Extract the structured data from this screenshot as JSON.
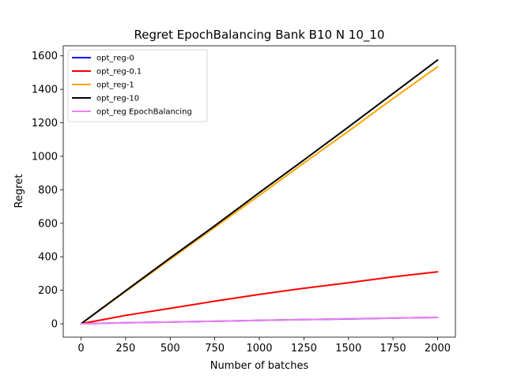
{
  "chart_data": {
    "type": "line",
    "title": "Regret EpochBalancing Bank B10 N 10_10",
    "xlabel": "Number of batches",
    "ylabel": "Regret",
    "xlim": [
      -100,
      2100
    ],
    "ylim": [
      -80,
      1660
    ],
    "xticks": [
      0,
      250,
      500,
      750,
      1000,
      1250,
      1500,
      1750,
      2000
    ],
    "yticks": [
      0,
      200,
      400,
      600,
      800,
      1000,
      1200,
      1400,
      1600
    ],
    "grid": false,
    "legend_position": "top-left",
    "series": [
      {
        "name": "opt_reg-0",
        "color": "#0000ff",
        "x": [
          0,
          250,
          500,
          750,
          1000,
          1250,
          1500,
          1750,
          2000
        ],
        "y": [
          0,
          6,
          10,
          15,
          20,
          25,
          29,
          34,
          38
        ]
      },
      {
        "name": "opt_reg-0.1",
        "color": "#ff0000",
        "x": [
          0,
          100,
          250,
          500,
          750,
          1000,
          1250,
          1500,
          1750,
          2000
        ],
        "y": [
          0,
          20,
          50,
          92,
          135,
          175,
          212,
          245,
          280,
          310
        ]
      },
      {
        "name": "opt_reg-1",
        "color": "#ffa500",
        "x": [
          0,
          250,
          500,
          750,
          1000,
          1250,
          1500,
          1750,
          2000
        ],
        "y": [
          0,
          193,
          385,
          576,
          767,
          960,
          1150,
          1345,
          1535
        ]
      },
      {
        "name": "opt_reg-10",
        "color": "#000000",
        "x": [
          0,
          250,
          500,
          750,
          1000,
          1250,
          1500,
          1750,
          2000
        ],
        "y": [
          0,
          197,
          393,
          585,
          783,
          978,
          1175,
          1375,
          1575
        ]
      },
      {
        "name": "opt_reg EpochBalancing",
        "color": "#ee82ee",
        "x": [
          0,
          250,
          500,
          750,
          1000,
          1250,
          1500,
          1750,
          2000
        ],
        "y": [
          0,
          6,
          10,
          15,
          20,
          25,
          30,
          34,
          38
        ]
      }
    ]
  }
}
